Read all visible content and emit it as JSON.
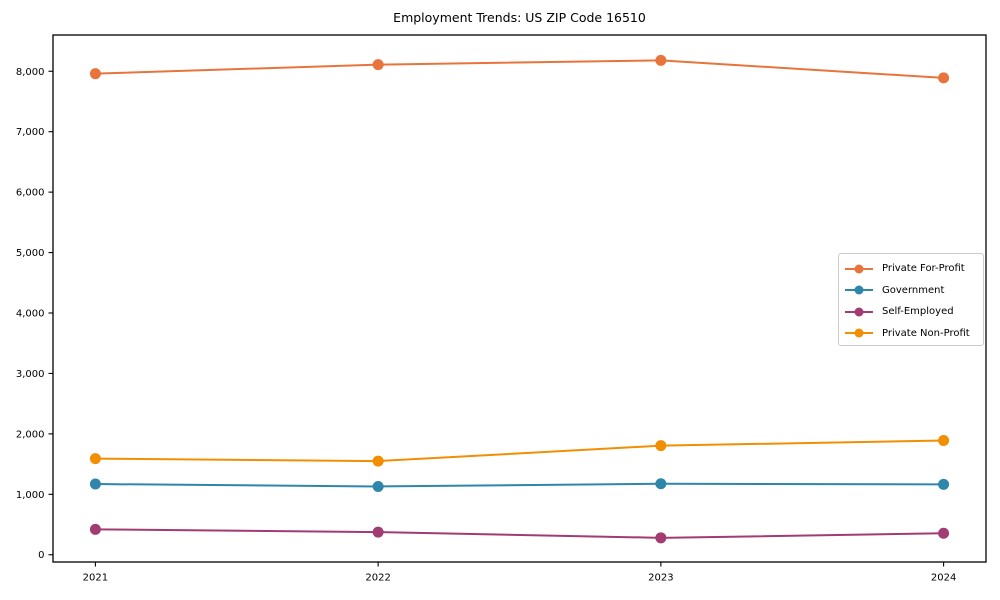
{
  "page": {
    "title": "Employment Trends: US ZIP Code 16510"
  },
  "chart_data": {
    "type": "line",
    "title": "Employment Trends: US ZIP Code 16510",
    "x": [
      2021,
      2022,
      2023,
      2024
    ],
    "xtick_labels": [
      "2021",
      "2022",
      "2023",
      "2024"
    ],
    "series": [
      {
        "name": "Private For-Profit",
        "color": "#E8743B",
        "values": [
          7960,
          8110,
          8180,
          7890
        ]
      },
      {
        "name": "Government",
        "color": "#2E86AB",
        "values": [
          1170,
          1130,
          1175,
          1165
        ]
      },
      {
        "name": "Self-Employed",
        "color": "#A23B72",
        "values": [
          420,
          375,
          280,
          355
        ]
      },
      {
        "name": "Private Non-Profit",
        "color": "#F18F01",
        "values": [
          1590,
          1550,
          1805,
          1890
        ]
      }
    ],
    "xlabel": "",
    "ylabel": "",
    "xlim": [
      2020.85,
      2024.15
    ],
    "ylim": [
      -120,
      8600
    ],
    "yticks": [
      0,
      1000,
      2000,
      3000,
      4000,
      5000,
      6000,
      7000,
      8000
    ],
    "ytick_labels": [
      "0",
      "1,000",
      "2,000",
      "3,000",
      "4,000",
      "5,000",
      "6,000",
      "7,000",
      "8,000"
    ],
    "grid": false,
    "legend_position": "right",
    "colors": {
      "axis": "#000000",
      "text": "#000000",
      "legend_border": "#cccccc",
      "background": "#ffffff"
    },
    "marker": "circle",
    "marker_radius": 5.5,
    "line_width": 2
  }
}
